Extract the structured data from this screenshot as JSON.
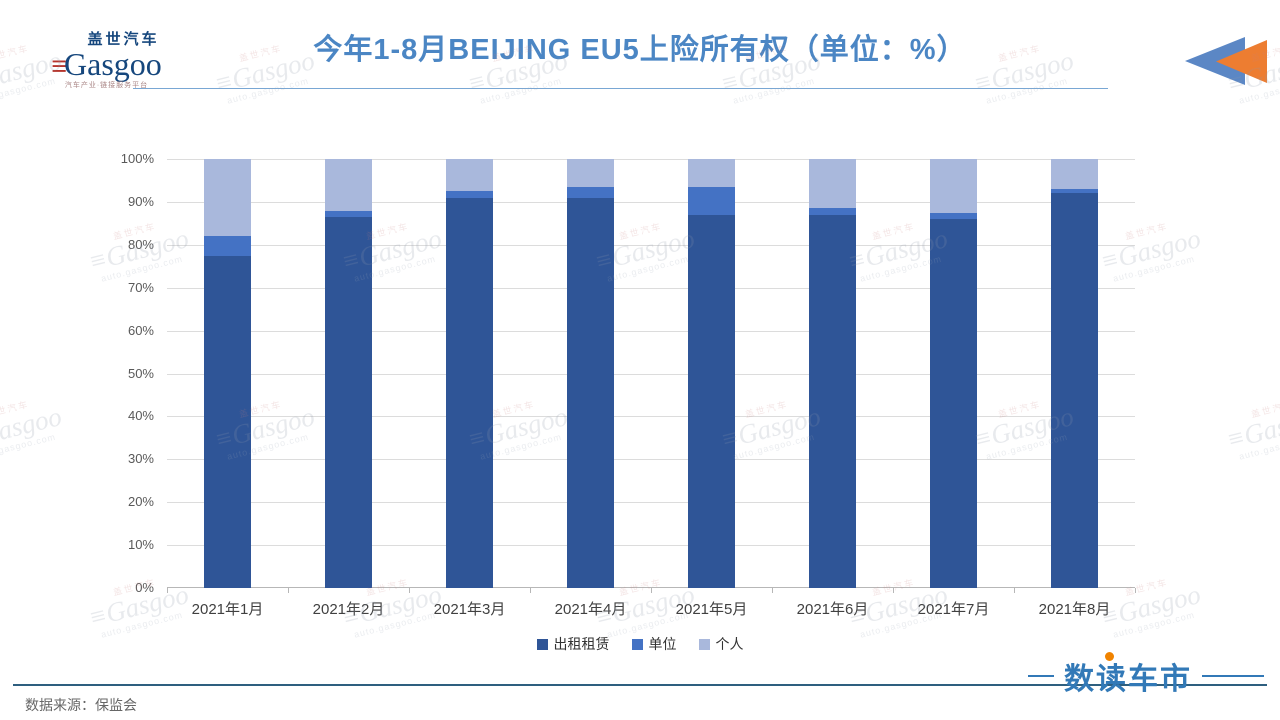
{
  "header": {
    "logo": {
      "cn": "盖世汽车",
      "en": "Gasgoo",
      "stripes": "≡",
      "tagline": "汽车产业·链接服务平台"
    },
    "title": "今年1-8月BEIJING EU5上险所有权（单位：%）",
    "title_color": "#4B86C4",
    "back_icon_colors": {
      "blue": "#5B87C5",
      "orange": "#ED7D31"
    }
  },
  "chart_data": {
    "type": "bar",
    "subtype": "stacked-percent",
    "title": "今年1-8月BEIJING EU5上险所有权（单位：%）",
    "categories": [
      "2021年1月",
      "2021年2月",
      "2021年3月",
      "2021年4月",
      "2021年5月",
      "2021年6月",
      "2021年7月",
      "2021年8月"
    ],
    "series": [
      {
        "name": "出租租赁",
        "color": "#2F5597",
        "values": [
          77.5,
          86.5,
          91,
          91,
          87,
          87,
          86,
          92
        ]
      },
      {
        "name": "单位",
        "color": "#4472C4",
        "values": [
          4.5,
          1.5,
          1.5,
          2.5,
          6.5,
          1.5,
          1.5,
          1
        ]
      },
      {
        "name": "个人",
        "color": "#A9B8DC",
        "values": [
          18,
          12,
          7.5,
          6.5,
          6.5,
          11.5,
          12.5,
          7
        ]
      }
    ],
    "ylim": [
      0,
      100
    ],
    "yticks": [
      "0%",
      "10%",
      "20%",
      "30%",
      "40%",
      "50%",
      "60%",
      "70%",
      "80%",
      "90%",
      "100%"
    ],
    "grid": true,
    "legend_position": "bottom"
  },
  "footer": {
    "source": "数据来源：保监会",
    "brand": "数读车市",
    "brand_color": "#3279B7",
    "brand_dot_color": "#F08300",
    "divider_color": "#2E5F7F"
  },
  "watermark": {
    "cn": "盖世汽车",
    "en": "Gasgoo",
    "stripes": "≡",
    "url": "auto.gasgoo.com"
  }
}
